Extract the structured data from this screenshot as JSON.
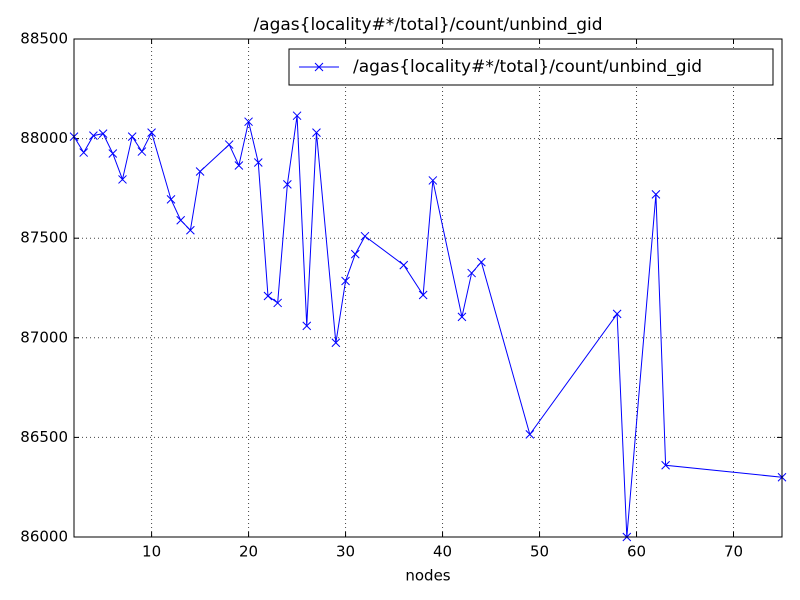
{
  "chart_data": {
    "type": "line",
    "title": "/agas{locality#*/total}/count/unbind_gid",
    "x_label": "nodes",
    "x": [
      2,
      3,
      4,
      5,
      6,
      7,
      8,
      9,
      10,
      12,
      13,
      14,
      15,
      18,
      19,
      20,
      21,
      22,
      23,
      24,
      25,
      26,
      27,
      29,
      30,
      31,
      32,
      36,
      38,
      39,
      42,
      43,
      44,
      49,
      58,
      59,
      62,
      63,
      75
    ],
    "series": [
      {
        "name": "/agas{locality#*/total}/count/unbind_gid",
        "color": "#0000ff",
        "marker": "x",
        "values": [
          88010,
          87930,
          88015,
          88025,
          87925,
          87795,
          88010,
          87935,
          88030,
          87695,
          87590,
          87540,
          87835,
          87970,
          87865,
          88085,
          87880,
          87210,
          87175,
          87770,
          88115,
          87060,
          88030,
          86975,
          87285,
          87420,
          87510,
          87365,
          87215,
          87790,
          87105,
          87325,
          87380,
          86515,
          87120,
          86000,
          87720,
          86360,
          86300
        ]
      }
    ],
    "xlim": [
      2,
      75
    ],
    "xticks": [
      10,
      20,
      30,
      40,
      50,
      60,
      70
    ],
    "ylim": [
      86000,
      88500
    ],
    "yticks": [
      86000,
      86500,
      87000,
      87500,
      88000,
      88500
    ],
    "grid": true,
    "legend": "upper right"
  }
}
